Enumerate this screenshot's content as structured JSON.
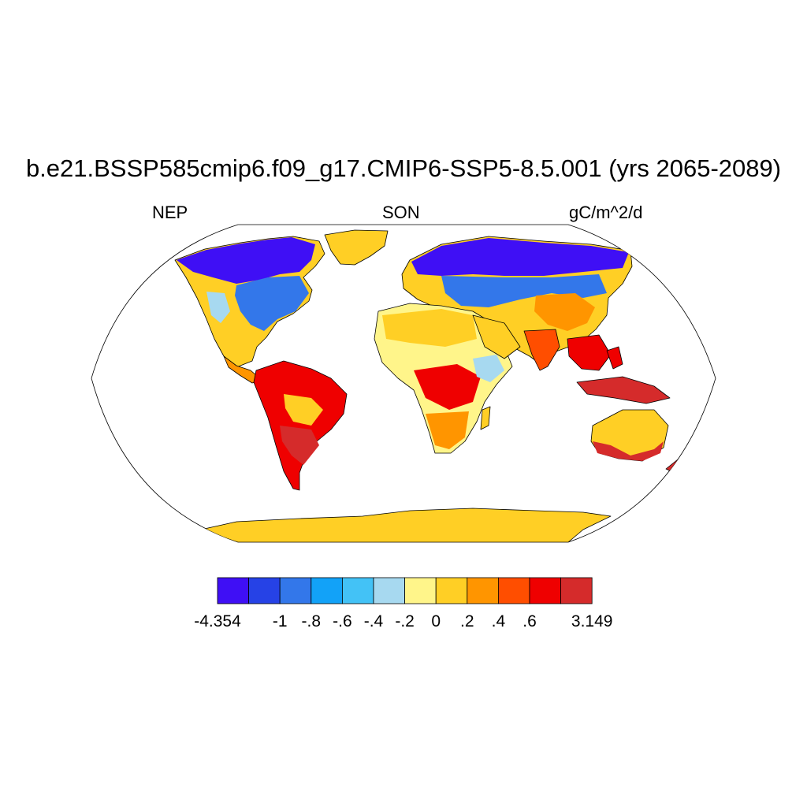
{
  "figure": {
    "title": "b.e21.BSSP585cmip6.f09_g17.CMIP6-SSP5-8.5.001 (yrs 2065-2089)",
    "left_label": "NEP",
    "center_label": "SON",
    "right_label": "gC/m^2/d"
  },
  "colorbar": {
    "colors": [
      "#3f0ff5",
      "#2642e6",
      "#3377ea",
      "#12a2f8",
      "#43c2f6",
      "#a7d9f0",
      "#fff58a",
      "#ffcf25",
      "#ff9500",
      "#ff4e00",
      "#ef0000",
      "#d52b2b"
    ],
    "labels": [
      "-4.354",
      "-1",
      "-.8",
      "-.6",
      "-.4",
      "-.2",
      "0",
      ".2",
      ".4",
      ".6",
      "3.149"
    ]
  },
  "map": {
    "projection": "robinson",
    "colors": {
      "ocean": "#ffffff",
      "coastline": "#000000",
      "strong_negative": "#3f0ff5",
      "negative": "#3377ea",
      "weak_negative": "#a7d9f0",
      "near_zero": "#fff58a",
      "weak_positive": "#ffcf25",
      "positive": "#ff4e00",
      "strong_positive": "#d52b2b"
    }
  }
}
